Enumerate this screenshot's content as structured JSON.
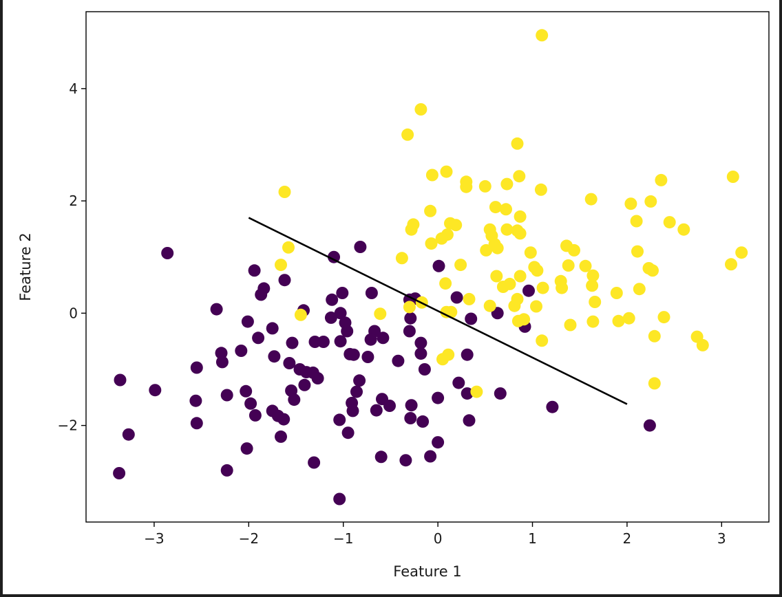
{
  "colors": {
    "background": "#ffffff",
    "page_border": "#1f1f1f",
    "class_0": "#440154",
    "class_1": "#fde725",
    "boundary": "#000000",
    "axes": "#000000"
  },
  "chart_data": {
    "type": "scatter",
    "title": "",
    "xlabel": "Feature 1",
    "ylabel": "Feature 2",
    "xlim": [
      -3.72,
      3.5
    ],
    "ylim": [
      -3.72,
      5.37
    ],
    "xticks": [
      -3,
      -2,
      -1,
      0,
      1,
      2,
      3
    ],
    "xtick_labels": [
      "−3",
      "−2",
      "−1",
      "0",
      "1",
      "2",
      "3"
    ],
    "yticks": [
      -2,
      0,
      2,
      4
    ],
    "ytick_labels": [
      "−2",
      "0",
      "2",
      "4"
    ],
    "grid": false,
    "legend": false,
    "series": [
      {
        "class": 0,
        "color": "#440154",
        "points": [
          [
            -2.86,
            1.07
          ],
          [
            -1.94,
            0.76
          ],
          [
            -1.84,
            0.44
          ],
          [
            -1.87,
            0.33
          ],
          [
            -1.62,
            0.59
          ],
          [
            -1.1,
            1.0
          ],
          [
            -0.82,
            1.18
          ],
          [
            -2.34,
            0.07
          ],
          [
            -2.01,
            -0.15
          ],
          [
            -1.75,
            -0.27
          ],
          [
            -1.42,
            0.05
          ],
          [
            -1.12,
            0.24
          ],
          [
            -1.01,
            0.36
          ],
          [
            -1.13,
            -0.08
          ],
          [
            -1.03,
            0.0
          ],
          [
            -0.98,
            -0.17
          ],
          [
            -0.96,
            -0.32
          ],
          [
            -0.7,
            0.36
          ],
          [
            -0.67,
            -0.32
          ],
          [
            -0.71,
            -0.47
          ],
          [
            -0.58,
            -0.44
          ],
          [
            -0.29,
            -0.09
          ],
          [
            -0.3,
            -0.32
          ],
          [
            -0.3,
            0.24
          ],
          [
            -0.24,
            0.26
          ],
          [
            0.01,
            0.84
          ],
          [
            0.2,
            0.28
          ],
          [
            0.35,
            -0.1
          ],
          [
            0.63,
            0.0
          ],
          [
            0.96,
            0.4
          ],
          [
            0.92,
            -0.24
          ],
          [
            -2.08,
            -0.67
          ],
          [
            -1.9,
            -0.44
          ],
          [
            -1.73,
            -0.77
          ],
          [
            -1.54,
            -0.53
          ],
          [
            -1.57,
            -0.89
          ],
          [
            -1.3,
            -0.51
          ],
          [
            -1.21,
            -0.51
          ],
          [
            -1.46,
            -1.0
          ],
          [
            -1.39,
            -1.05
          ],
          [
            -1.32,
            -1.06
          ],
          [
            -1.41,
            -1.28
          ],
          [
            -1.27,
            -1.16
          ],
          [
            -1.55,
            -1.38
          ],
          [
            -1.52,
            -1.54
          ],
          [
            -1.03,
            -0.5
          ],
          [
            -0.93,
            -0.73
          ],
          [
            -0.89,
            -0.74
          ],
          [
            -0.74,
            -0.78
          ],
          [
            -0.42,
            -0.85
          ],
          [
            -0.18,
            -0.53
          ],
          [
            -0.18,
            -0.72
          ],
          [
            -0.14,
            -1.0
          ],
          [
            0.31,
            -0.74
          ],
          [
            -2.29,
            -0.71
          ],
          [
            -2.28,
            -0.87
          ],
          [
            -2.55,
            -0.97
          ],
          [
            -3.36,
            -1.19
          ],
          [
            -2.99,
            -1.37
          ],
          [
            -2.03,
            -1.39
          ],
          [
            -2.23,
            -1.46
          ],
          [
            -1.98,
            -1.61
          ],
          [
            -2.56,
            -1.56
          ],
          [
            -1.93,
            -1.82
          ],
          [
            -1.75,
            -1.74
          ],
          [
            -1.69,
            -1.83
          ],
          [
            -1.63,
            -1.89
          ],
          [
            -1.66,
            -2.2
          ],
          [
            -2.55,
            -1.96
          ],
          [
            -3.27,
            -2.16
          ],
          [
            -2.02,
            -2.41
          ],
          [
            -3.37,
            -2.85
          ],
          [
            -2.23,
            -2.8
          ],
          [
            -1.31,
            -2.66
          ],
          [
            -1.04,
            -3.31
          ],
          [
            -0.83,
            -1.2
          ],
          [
            -0.86,
            -1.4
          ],
          [
            -0.91,
            -1.6
          ],
          [
            -0.9,
            -1.74
          ],
          [
            -0.65,
            -1.73
          ],
          [
            -0.59,
            -1.53
          ],
          [
            -0.51,
            -1.65
          ],
          [
            -1.04,
            -1.9
          ],
          [
            -0.95,
            -2.13
          ],
          [
            -0.6,
            -2.56
          ],
          [
            -0.34,
            -2.62
          ],
          [
            -0.28,
            -1.64
          ],
          [
            -0.29,
            -1.87
          ],
          [
            -0.16,
            -1.93
          ],
          [
            -0.08,
            -2.55
          ],
          [
            0.0,
            -1.51
          ],
          [
            0.0,
            -2.3
          ],
          [
            0.22,
            -1.24
          ],
          [
            0.31,
            -1.43
          ],
          [
            0.33,
            -1.91
          ],
          [
            0.66,
            -1.43
          ],
          [
            1.21,
            -1.67
          ],
          [
            2.24,
            -2.0
          ]
        ]
      },
      {
        "class": 1,
        "color": "#fde725",
        "points": [
          [
            1.1,
            4.95
          ],
          [
            -0.18,
            3.63
          ],
          [
            -0.32,
            3.18
          ],
          [
            0.84,
            3.02
          ],
          [
            -1.62,
            2.16
          ],
          [
            -0.06,
            2.46
          ],
          [
            0.09,
            2.52
          ],
          [
            0.3,
            2.34
          ],
          [
            0.3,
            2.25
          ],
          [
            0.5,
            2.26
          ],
          [
            0.73,
            2.3
          ],
          [
            0.86,
            2.44
          ],
          [
            1.09,
            2.2
          ],
          [
            1.62,
            2.03
          ],
          [
            2.04,
            1.95
          ],
          [
            2.25,
            1.99
          ],
          [
            2.36,
            2.37
          ],
          [
            3.12,
            2.43
          ],
          [
            -0.26,
            1.58
          ],
          [
            -0.28,
            1.49
          ],
          [
            -0.08,
            1.82
          ],
          [
            0.13,
            1.6
          ],
          [
            0.19,
            1.57
          ],
          [
            0.1,
            1.4
          ],
          [
            0.04,
            1.33
          ],
          [
            -0.07,
            1.24
          ],
          [
            0.55,
            1.49
          ],
          [
            0.57,
            1.38
          ],
          [
            0.61,
            1.89
          ],
          [
            0.72,
            1.85
          ],
          [
            0.73,
            1.49
          ],
          [
            0.84,
            1.47
          ],
          [
            0.87,
            1.42
          ],
          [
            0.87,
            1.72
          ],
          [
            0.6,
            1.23
          ],
          [
            0.63,
            1.16
          ],
          [
            0.51,
            1.12
          ],
          [
            0.98,
            1.08
          ],
          [
            1.36,
            1.2
          ],
          [
            1.44,
            1.12
          ],
          [
            2.1,
            1.64
          ],
          [
            2.45,
            1.62
          ],
          [
            2.6,
            1.49
          ],
          [
            2.11,
            1.1
          ],
          [
            3.21,
            1.08
          ],
          [
            -1.58,
            1.17
          ],
          [
            -1.66,
            0.86
          ],
          [
            -0.38,
            0.98
          ],
          [
            0.24,
            0.86
          ],
          [
            0.62,
            0.66
          ],
          [
            0.69,
            0.47
          ],
          [
            0.76,
            0.52
          ],
          [
            0.87,
            0.66
          ],
          [
            1.02,
            0.82
          ],
          [
            1.05,
            0.76
          ],
          [
            1.11,
            0.45
          ],
          [
            1.38,
            0.85
          ],
          [
            1.56,
            0.84
          ],
          [
            1.3,
            0.57
          ],
          [
            1.31,
            0.45
          ],
          [
            1.63,
            0.49
          ],
          [
            1.64,
            0.67
          ],
          [
            1.66,
            0.2
          ],
          [
            1.89,
            0.36
          ],
          [
            2.13,
            0.43
          ],
          [
            2.23,
            0.8
          ],
          [
            2.27,
            0.76
          ],
          [
            3.1,
            0.87
          ],
          [
            0.08,
            0.53
          ],
          [
            0.33,
            0.25
          ],
          [
            -0.3,
            0.11
          ],
          [
            -0.17,
            0.19
          ],
          [
            0.09,
            0.02
          ],
          [
            0.14,
            0.02
          ],
          [
            -1.45,
            -0.03
          ],
          [
            -0.61,
            -0.01
          ],
          [
            0.55,
            0.13
          ],
          [
            0.81,
            0.13
          ],
          [
            0.84,
            0.25
          ],
          [
            1.04,
            0.12
          ],
          [
            0.91,
            -0.11
          ],
          [
            0.85,
            -0.14
          ],
          [
            1.4,
            -0.21
          ],
          [
            1.64,
            -0.15
          ],
          [
            1.91,
            -0.14
          ],
          [
            2.02,
            -0.09
          ],
          [
            2.39,
            -0.07
          ],
          [
            2.29,
            -0.41
          ],
          [
            2.74,
            -0.42
          ],
          [
            2.8,
            -0.57
          ],
          [
            1.1,
            -0.49
          ],
          [
            0.05,
            -0.82
          ],
          [
            0.11,
            -0.74
          ],
          [
            0.41,
            -1.4
          ],
          [
            2.29,
            -1.25
          ]
        ]
      }
    ],
    "boundary_line": {
      "x": [
        -2.0,
        2.0
      ],
      "y": [
        1.7,
        -1.62
      ]
    }
  }
}
